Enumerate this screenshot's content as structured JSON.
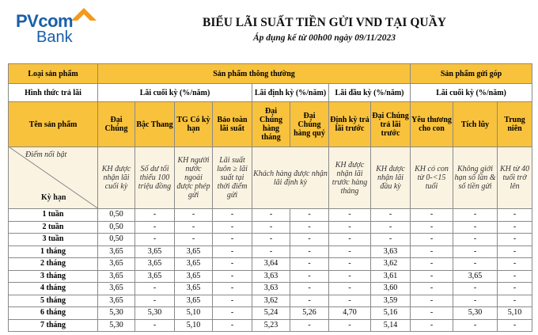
{
  "header": {
    "logo_line1": "PVcom",
    "logo_line2": "Bank",
    "title": "BIỂU LÃI SUẤT TIỀN GỬI VND TẠI QUẦY",
    "subtitle": "Áp dụng kể từ 00h00 ngày 09/11/2023"
  },
  "table": {
    "row1": [
      "Loại sản phẩm",
      "Sản phẩm thông thường",
      "Sản phẩm gửi góp"
    ],
    "row2": [
      "Hình thức trả lãi",
      "Lãi cuối kỳ (%/năm)",
      "Lãi định kỳ (%/năm)",
      "Lãi đầu kỳ (%/năm)",
      "Lãi cuối kỳ (%/năm)"
    ],
    "row3": [
      "Tên sản phẩm",
      "Đại Chúng",
      "Bậc Thang",
      "TG Có kỳ hạn",
      "Bảo toàn lãi suất",
      "Đại Chúng hàng tháng",
      "Đại Chúng hàng quý",
      "Định kỳ trả lãi trước",
      "Đại Chúng trả lãi trước",
      "Yêu thương cho con",
      "Tích lũy",
      "Trung niên"
    ],
    "row4": [
      "Điểm nổi bật",
      "Kỳ hạn",
      "KH được nhận lãi cuối kỳ",
      "Số dư tối thiểu 100 triệu đồng",
      "KH người nước ngoài được phép gửi",
      "Lãi suất luôn ≥ lãi suất tại thời điểm gửi",
      "Khách hàng được nhận lãi định kỳ",
      "KH được nhận lãi trước hàng tháng",
      "KH được nhận lãi đầu kỳ",
      "KH có con từ 0-<15 tuổi",
      "Không giới hạn số lần & số tiền gửi",
      "KH từ 40 tuổi trở lên"
    ],
    "rows": [
      [
        "1 tuần",
        "0,50",
        "-",
        "-",
        "-",
        "-",
        "-",
        "-",
        "-",
        "-",
        "-",
        "-"
      ],
      [
        "2 tuần",
        "0,50",
        "-",
        "-",
        "-",
        "-",
        "-",
        "-",
        "-",
        "-",
        "-",
        "-"
      ],
      [
        "3 tuần",
        "0,50",
        "-",
        "-",
        "-",
        "-",
        "-",
        "-",
        "-",
        "-",
        "-",
        "-"
      ],
      [
        "1 tháng",
        "3,65",
        "3,65",
        "3,65",
        "-",
        "-",
        "-",
        "-",
        "3,63",
        "-",
        "-",
        "-"
      ],
      [
        "2 tháng",
        "3,65",
        "3,65",
        "3,65",
        "-",
        "3,64",
        "-",
        "-",
        "3,62",
        "-",
        "-",
        "-"
      ],
      [
        "3 tháng",
        "3,65",
        "3,65",
        "3,65",
        "-",
        "3,63",
        "-",
        "-",
        "3,61",
        "-",
        "3,65",
        "-"
      ],
      [
        "4 tháng",
        "3,65",
        "-",
        "3,65",
        "-",
        "3,63",
        "-",
        "-",
        "3,60",
        "-",
        "-",
        "-"
      ],
      [
        "5 tháng",
        "3,65",
        "-",
        "3,65",
        "-",
        "3,62",
        "-",
        "-",
        "3,59",
        "-",
        "-",
        "-"
      ],
      [
        "6 tháng",
        "5,30",
        "5,30",
        "5,10",
        "-",
        "5,24",
        "5,26",
        "4,70",
        "5,16",
        "-",
        "5,30",
        "5,10"
      ],
      [
        "7 tháng",
        "5,30",
        "-",
        "5,10",
        "-",
        "5,23",
        "-",
        "-",
        "5,14",
        "-",
        "-",
        "-"
      ]
    ]
  }
}
